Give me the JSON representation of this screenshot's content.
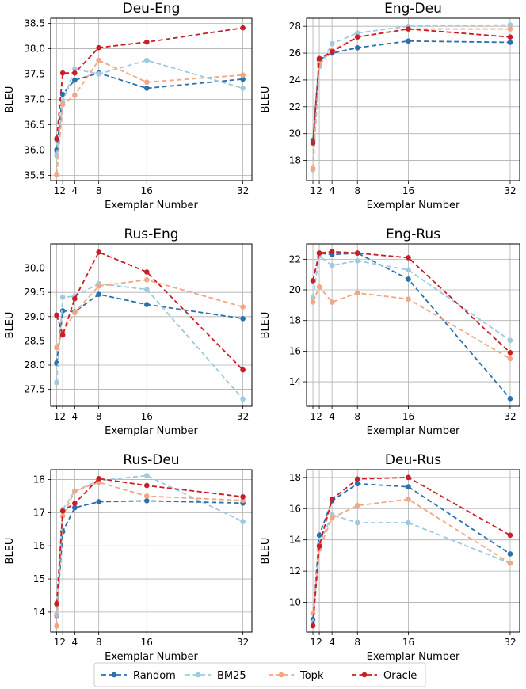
{
  "legend": {
    "entries": [
      {
        "name": "Random",
        "color": "#2a70ad"
      },
      {
        "name": "BM25",
        "color": "#9ecae1"
      },
      {
        "name": "Topk",
        "color": "#f4a582"
      },
      {
        "name": "Oracle",
        "color": "#c81e28"
      }
    ],
    "location": "bottom-center"
  },
  "chart_data": [
    {
      "type": "line",
      "title": "Deu-Eng",
      "xlabel": "Exemplar Number",
      "ylabel": "BLEU",
      "x": [
        1,
        2,
        4,
        8,
        16,
        32
      ],
      "xticks": [
        "1",
        "2",
        "4",
        "8",
        "16",
        "32"
      ],
      "xlim": [
        0,
        33.5
      ],
      "ylim": [
        35.4,
        38.6
      ],
      "yticks": [
        35.5,
        36.0,
        36.5,
        37.0,
        37.5,
        38.0,
        38.5
      ],
      "ytick_labels": [
        "35.5",
        "36.0",
        "36.5",
        "37.0",
        "37.5",
        "38.0",
        "38.5"
      ],
      "grid": true,
      "series": [
        {
          "name": "Random",
          "values": [
            36.0,
            37.1,
            37.38,
            37.52,
            37.22,
            37.4
          ]
        },
        {
          "name": "BM25",
          "values": [
            35.9,
            36.95,
            37.6,
            37.5,
            37.77,
            37.22
          ]
        },
        {
          "name": "Topk",
          "values": [
            35.52,
            36.9,
            37.08,
            37.77,
            37.34,
            37.48
          ]
        },
        {
          "name": "Oracle",
          "values": [
            36.22,
            37.52,
            37.52,
            38.02,
            38.13,
            38.41
          ]
        }
      ]
    },
    {
      "type": "line",
      "title": "Eng-Deu",
      "xlabel": "Exemplar Number",
      "ylabel": "BLEU",
      "x": [
        1,
        2,
        4,
        8,
        16,
        32
      ],
      "xticks": [
        "1",
        "2",
        "4",
        "8",
        "16",
        "32"
      ],
      "xlim": [
        0,
        33.5
      ],
      "ylim": [
        16.5,
        28.6
      ],
      "yticks": [
        18,
        20,
        22,
        24,
        26,
        28
      ],
      "ytick_labels": [
        "18",
        "20",
        "22",
        "24",
        "26",
        "28"
      ],
      "grid": true,
      "series": [
        {
          "name": "Random",
          "values": [
            19.5,
            25.5,
            26.0,
            26.4,
            26.9,
            26.8
          ]
        },
        {
          "name": "BM25",
          "values": [
            17.3,
            25.0,
            26.7,
            27.5,
            28.0,
            28.1
          ]
        },
        {
          "name": "Topk",
          "values": [
            17.4,
            25.2,
            26.2,
            27.2,
            27.8,
            27.8
          ]
        },
        {
          "name": "Oracle",
          "values": [
            19.3,
            25.6,
            26.1,
            27.2,
            27.8,
            27.2
          ]
        }
      ]
    },
    {
      "type": "line",
      "title": "Rus-Eng",
      "xlabel": "Exemplar Number",
      "ylabel": "BLEU",
      "x": [
        1,
        2,
        4,
        8,
        16,
        32
      ],
      "xticks": [
        "1",
        "2",
        "4",
        "8",
        "16",
        "32"
      ],
      "xlim": [
        0,
        33.5
      ],
      "ylim": [
        27.15,
        30.5
      ],
      "yticks": [
        27.5,
        28.0,
        28.5,
        29.0,
        29.5,
        30.0
      ],
      "ytick_labels": [
        "27.5",
        "28.0",
        "28.5",
        "29.0",
        "29.5",
        "30.0"
      ],
      "grid": true,
      "series": [
        {
          "name": "Random",
          "values": [
            28.04,
            29.12,
            29.1,
            29.46,
            29.25,
            28.96
          ]
        },
        {
          "name": "BM25",
          "values": [
            27.64,
            29.4,
            29.42,
            29.68,
            29.56,
            27.3
          ]
        },
        {
          "name": "Topk",
          "values": [
            28.36,
            28.68,
            29.08,
            29.63,
            29.76,
            29.2
          ]
        },
        {
          "name": "Oracle",
          "values": [
            29.03,
            28.62,
            29.37,
            30.33,
            29.92,
            27.9
          ]
        }
      ]
    },
    {
      "type": "line",
      "title": "Eng-Rus",
      "xlabel": "Exemplar Number",
      "ylabel": "BLEU",
      "x": [
        1,
        2,
        4,
        8,
        16,
        32
      ],
      "xticks": [
        "1",
        "2",
        "4",
        "8",
        "16",
        "32"
      ],
      "xlim": [
        0,
        33.5
      ],
      "ylim": [
        12.4,
        23.0
      ],
      "yticks": [
        14,
        16,
        18,
        20,
        22
      ],
      "ytick_labels": [
        "14",
        "16",
        "18",
        "20",
        "22"
      ],
      "grid": true,
      "series": [
        {
          "name": "Random",
          "values": [
            20.6,
            22.4,
            22.3,
            22.4,
            20.7,
            12.9
          ]
        },
        {
          "name": "BM25",
          "values": [
            19.5,
            22.2,
            21.6,
            21.9,
            21.3,
            16.7
          ]
        },
        {
          "name": "Topk",
          "values": [
            19.2,
            20.2,
            19.2,
            19.8,
            19.4,
            15.5
          ]
        },
        {
          "name": "Oracle",
          "values": [
            20.6,
            22.4,
            22.5,
            22.4,
            22.1,
            15.9
          ]
        }
      ]
    },
    {
      "type": "line",
      "title": "Rus-Deu",
      "xlabel": "Exemplar Number",
      "ylabel": "BLEU",
      "x": [
        1,
        2,
        4,
        8,
        16,
        32
      ],
      "xticks": [
        "1",
        "2",
        "4",
        "8",
        "16",
        "32"
      ],
      "xlim": [
        0,
        33.5
      ],
      "ylim": [
        13.4,
        18.3
      ],
      "yticks": [
        14,
        15,
        16,
        17,
        18
      ],
      "ytick_labels": [
        "14",
        "15",
        "16",
        "17",
        "18"
      ],
      "grid": true,
      "series": [
        {
          "name": "Random",
          "values": [
            13.9,
            16.43,
            17.15,
            17.33,
            17.36,
            17.29
          ]
        },
        {
          "name": "BM25",
          "values": [
            13.92,
            17.1,
            17.65,
            17.97,
            18.12,
            16.73
          ]
        },
        {
          "name": "Topk",
          "values": [
            13.58,
            16.9,
            17.65,
            17.92,
            17.5,
            17.37
          ]
        },
        {
          "name": "Oracle",
          "values": [
            14.25,
            17.05,
            17.28,
            18.03,
            17.82,
            17.48
          ]
        }
      ]
    },
    {
      "type": "line",
      "title": "Deu-Rus",
      "xlabel": "Exemplar Number",
      "ylabel": "BLEU",
      "x": [
        1,
        2,
        4,
        8,
        16,
        32
      ],
      "xticks": [
        "1",
        "2",
        "4",
        "8",
        "16",
        "32"
      ],
      "xlim": [
        0,
        33.5
      ],
      "ylim": [
        8.1,
        18.5
      ],
      "yticks": [
        10,
        12,
        14,
        16,
        18
      ],
      "ytick_labels": [
        "10",
        "12",
        "14",
        "16",
        "18"
      ],
      "grid": true,
      "series": [
        {
          "name": "Random",
          "values": [
            8.9,
            14.3,
            16.5,
            17.6,
            17.4,
            13.1
          ]
        },
        {
          "name": "BM25",
          "values": [
            8.7,
            13.7,
            15.6,
            15.1,
            15.1,
            12.5
          ]
        },
        {
          "name": "Topk",
          "values": [
            9.3,
            13.4,
            15.4,
            16.2,
            16.6,
            12.5
          ]
        },
        {
          "name": "Oracle",
          "values": [
            8.5,
            13.6,
            16.6,
            17.9,
            18.0,
            14.3
          ]
        }
      ]
    }
  ]
}
